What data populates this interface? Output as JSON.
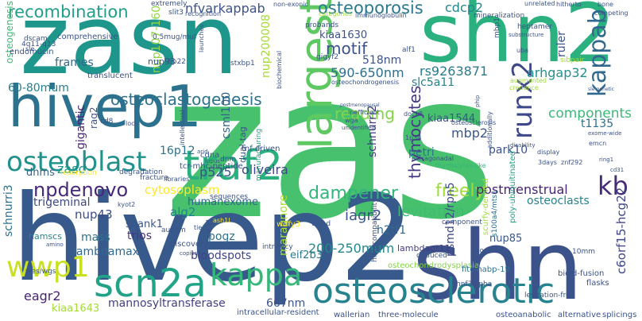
{
  "words": [
    {
      "text": "zas",
      "color": "#48c16e"
    },
    {
      "text": "hivep2",
      "color": "#38598c"
    },
    {
      "text": "zasn",
      "color": "#1f968b"
    },
    {
      "text": "shn2",
      "color": "#2bb07f"
    },
    {
      "text": "shn",
      "color": "#3b528b"
    },
    {
      "text": "hivep1",
      "color": "#2c728e"
    },
    {
      "text": "largest",
      "color": "#5ec962"
    },
    {
      "text": "traf2",
      "color": "#2ab07f"
    },
    {
      "text": "osteosclerotic",
      "color": "#26828e"
    },
    {
      "text": "scn2a",
      "color": "#20a386"
    },
    {
      "text": "kappab",
      "color": "#31688e"
    },
    {
      "text": "osteoblast",
      "color": "#21918c"
    },
    {
      "text": "wwp1",
      "color": "#c8e020"
    },
    {
      "text": "kappa",
      "color": "#35b779"
    },
    {
      "text": "runx2",
      "color": "#3e4989"
    },
    {
      "text": "recombination",
      "color": "#1f9e89"
    },
    {
      "text": "osteoporosis",
      "color": "#2a788e"
    },
    {
      "text": "thymocytes",
      "color": "#443983"
    },
    {
      "text": "dampener",
      "color": "#31b57b"
    },
    {
      "text": "osteoclastogenesis",
      "color": "#2c728e"
    },
    {
      "text": "npdenovo",
      "color": "#482878"
    },
    {
      "text": "motif",
      "color": "#3b528b"
    },
    {
      "text": "reading",
      "color": "#84d44b"
    },
    {
      "text": "freely",
      "color": "#a0da39"
    },
    {
      "text": "kb",
      "color": "#472c7a"
    },
    {
      "text": "c6orf15-hcg22",
      "color": "#3f4788"
    },
    {
      "text": "cdcp2",
      "color": "#24868e"
    },
    {
      "text": "nfvarkappab",
      "color": "#3b528b"
    },
    {
      "text": "590-650nm",
      "color": "#2d708e"
    },
    {
      "text": "rs9263871",
      "color": "#297b8e"
    },
    {
      "text": "arhgap32",
      "color": "#21918c"
    },
    {
      "text": "mbp2",
      "color": "#38588c"
    },
    {
      "text": "schnurri2",
      "color": "#443983"
    },
    {
      "text": "components",
      "color": "#3aba76"
    },
    {
      "text": "osteoclasts",
      "color": "#26828e"
    },
    {
      "text": "postmenstrual",
      "color": "#482374"
    },
    {
      "text": "levitation",
      "color": "#3dbc74"
    },
    {
      "text": "iagr2",
      "color": "#3b528b"
    },
    {
      "text": "200-250mum",
      "color": "#24868e"
    },
    {
      "text": "cytosoplasm",
      "color": "#fde725"
    },
    {
      "text": "oliveira",
      "color": "#3f4788"
    },
    {
      "text": "humanexome",
      "color": "#33638d"
    },
    {
      "text": "lambdamax",
      "color": "#31688e"
    },
    {
      "text": "bloodspots",
      "color": "#414487"
    },
    {
      "text": "mannosyltransferase",
      "color": "#433e85"
    },
    {
      "text": "667nm",
      "color": "#3b528b"
    },
    {
      "text": "eagr2",
      "color": "#482475"
    },
    {
      "text": "kiaa1643",
      "color": "#a5db36"
    },
    {
      "text": "p525",
      "color": "#3b528b"
    },
    {
      "text": "zasc",
      "color": "#1f968b"
    },
    {
      "text": "dnms",
      "color": "#33638d"
    },
    {
      "text": "schnurri3",
      "color": "#2c728e"
    },
    {
      "text": "hamscs",
      "color": "#25858e"
    },
    {
      "text": "mass",
      "color": "#2c728e"
    },
    {
      "text": "nup43",
      "color": "#3d4d8a"
    },
    {
      "text": "shank1",
      "color": "#39568c"
    },
    {
      "text": "trios",
      "color": "#46327e"
    },
    {
      "text": "alg2",
      "color": "#25838e"
    },
    {
      "text": "pogz",
      "color": "#2c728e"
    },
    {
      "text": "maragnore",
      "color": "#a8db34"
    },
    {
      "text": "eif2b3",
      "color": "#2a788e"
    },
    {
      "text": "h2tf1",
      "color": "#31688e"
    },
    {
      "text": "nup85",
      "color": "#39568c"
    },
    {
      "text": "psmd12/rpn5",
      "color": "#3e4989"
    },
    {
      "text": "lambdagt11",
      "color": "#433e85"
    },
    {
      "text": "petri",
      "color": "#2c728e"
    },
    {
      "text": "park10",
      "color": "#3b528b"
    },
    {
      "text": "t1135",
      "color": "#2d708e"
    },
    {
      "text": "ruler",
      "color": "#3b528b"
    },
    {
      "text": "kiaa1544",
      "color": "#3b528b"
    },
    {
      "text": "slc5a11",
      "color": "#26828e"
    },
    {
      "text": "518nm",
      "color": "#3b528b"
    },
    {
      "text": "kiaa1630",
      "color": "#3b528b"
    },
    {
      "text": "frames",
      "color": "#31688e"
    },
    {
      "text": "60-80mum",
      "color": "#287d8e"
    },
    {
      "text": "csml100",
      "color": "#33638d"
    },
    {
      "text": "16p12",
      "color": "#2d708e"
    },
    {
      "text": "nup107-160",
      "color": "#90d743"
    },
    {
      "text": "nup200008",
      "color": "#a5db36"
    },
    {
      "text": "comprehensive",
      "color": "#3b528b"
    },
    {
      "text": "nup93",
      "color": "#3b528b"
    },
    {
      "text": "thymocytes-like",
      "color": "#35b779"
    },
    {
      "text": "gigantic",
      "color": "#482475"
    },
    {
      "text": "rag2",
      "color": "#3b528b"
    },
    {
      "text": "trigeminal",
      "color": "#3e4989"
    },
    {
      "text": "osteogenesis",
      "color": "#3dbc74"
    },
    {
      "text": "cdna",
      "color": "#38598c"
    },
    {
      "text": "dnm",
      "color": "#3b528b"
    },
    {
      "text": "manufacturing",
      "color": "#1fa088"
    },
    {
      "text": "dual-tag",
      "color": "#3b528b"
    },
    {
      "text": "tnf-driven",
      "color": "#3b528b"
    },
    {
      "text": "tcr-mhc-peptide",
      "color": "#3b528b"
    },
    {
      "text": "discovery",
      "color": "#3b528b"
    },
    {
      "text": "intricacy",
      "color": "#3b528b"
    },
    {
      "text": "sequences",
      "color": "#3b528b"
    },
    {
      "text": "osteochondrodysplasia",
      "color": "#84d44b"
    },
    {
      "text": "fitc-habp-19",
      "color": "#2c728e"
    },
    {
      "text": "intracellular-resident",
      "color": "#3b528b"
    },
    {
      "text": "wallerian",
      "color": "#3b528b"
    },
    {
      "text": "three-molecule",
      "color": "#3b528b"
    },
    {
      "text": "hnf3alpha",
      "color": "#3b528b"
    },
    {
      "text": "scurfy-derived",
      "color": "#a0da39"
    },
    {
      "text": "s100a4/mts1",
      "color": "#2c728e"
    },
    {
      "text": "poly-ubiquitinated",
      "color": "#1f9e89"
    },
    {
      "text": "bioid-fusion",
      "color": "#3b528b"
    },
    {
      "text": "flasks",
      "color": "#3b528b"
    },
    {
      "text": "levitation-free",
      "color": "#3b528b"
    },
    {
      "text": "osteoanabolic",
      "color": "#3b528b"
    },
    {
      "text": "alternative",
      "color": "#3b528b"
    },
    {
      "text": "splicings",
      "color": "#3b528b"
    },
    {
      "text": "10mm",
      "color": "#3b528b"
    },
    {
      "text": "clones",
      "color": "#3b528b"
    },
    {
      "text": "deduced",
      "color": "#3b528b"
    },
    {
      "text": "component",
      "color": "#3b528b"
    },
    {
      "text": "histocompatibility",
      "color": "#3b528b"
    },
    {
      "text": "urp-d",
      "color": "#3b528b"
    },
    {
      "text": "wdfy3",
      "color": "#fde725"
    },
    {
      "text": "autism",
      "color": "#3b528b"
    },
    {
      "text": "ash1l",
      "color": "#fde725"
    },
    {
      "text": "kyot2",
      "color": "#3b528b"
    },
    {
      "text": "tier",
      "color": "#3b528b"
    },
    {
      "text": "amino",
      "color": "#3b528b"
    },
    {
      "text": "wes/wgs",
      "color": "#3b528b"
    },
    {
      "text": "copies",
      "color": "#3b528b"
    },
    {
      "text": "sntb1",
      "color": "#3b528b"
    },
    {
      "text": "libraries",
      "color": "#3b528b"
    },
    {
      "text": "fracture",
      "color": "#3b528b"
    },
    {
      "text": "resorption",
      "color": "#fde725"
    },
    {
      "text": "degradation",
      "color": "#3b528b"
    },
    {
      "text": "translucent",
      "color": "#3b528b"
    },
    {
      "text": "endomucin",
      "color": "#3b528b"
    },
    {
      "text": "dscam",
      "color": "#3b528b"
    },
    {
      "text": "sle",
      "color": "#3b528b"
    },
    {
      "text": "4q11-q13",
      "color": "#3b528b"
    },
    {
      "text": "extremely",
      "color": "#3b528b"
    },
    {
      "text": "slit3",
      "color": "#3b528b"
    },
    {
      "text": "recognition",
      "color": "#3b528b"
    },
    {
      "text": "non-exonic",
      "color": "#3b528b"
    },
    {
      "text": "immunoglobulin",
      "color": "#3b528b"
    },
    {
      "text": "categories",
      "color": "#a0da39"
    },
    {
      "text": "probands",
      "color": "#3b528b"
    },
    {
      "text": "0.5mug/mul",
      "color": "#3b528b"
    },
    {
      "text": "6p22",
      "color": "#3b528b"
    },
    {
      "text": "launches",
      "color": "#3b528b"
    },
    {
      "text": "stxbp1",
      "color": "#3b528b"
    },
    {
      "text": "alf1",
      "color": "#3b528b"
    },
    {
      "text": "gigyf2",
      "color": "#3b528b"
    },
    {
      "text": "biochemical",
      "color": "#3b528b"
    },
    {
      "text": "osteochondrogenesis",
      "color": "#3b528b"
    },
    {
      "text": "mineralization",
      "color": "#3b528b"
    },
    {
      "text": "heptamer",
      "color": "#3b528b"
    },
    {
      "text": "substructure",
      "color": "#3b528b"
    },
    {
      "text": "unrelated",
      "color": "#3b528b"
    },
    {
      "text": "hitherto",
      "color": "#3b528b"
    },
    {
      "text": "bone",
      "color": "#3b528b"
    },
    {
      "text": "competing",
      "color": "#3b528b"
    },
    {
      "text": "sibpair",
      "color": "#a0da39"
    },
    {
      "text": "augmented",
      "color": "#a0da39"
    },
    {
      "text": "credence",
      "color": "#a0da39"
    },
    {
      "text": "cd8",
      "color": "#3b528b"
    },
    {
      "text": "1p34",
      "color": "#3b528b"
    },
    {
      "text": "dock8",
      "color": "#3b528b"
    },
    {
      "text": "wga",
      "color": "#3b528b"
    },
    {
      "text": "inefficient",
      "color": "#3b528b"
    },
    {
      "text": "unidentified",
      "color": "#3b528b"
    },
    {
      "text": "extragonadal",
      "color": "#3b528b"
    },
    {
      "text": "osteosclerosis",
      "color": "#3b528b"
    },
    {
      "text": "additionally",
      "color": "#3b528b"
    },
    {
      "text": "disability",
      "color": "#3b528b"
    },
    {
      "text": "3days",
      "color": "#3b528b"
    },
    {
      "text": "display",
      "color": "#3b528b"
    },
    {
      "text": "znf292",
      "color": "#3b528b"
    },
    {
      "text": "emcn",
      "color": "#3b528b"
    },
    {
      "text": "exome-wide",
      "color": "#3b528b"
    },
    {
      "text": "ring1",
      "color": "#3b528b"
    },
    {
      "text": "cd31",
      "color": "#3b528b"
    },
    {
      "text": "mbp1",
      "color": "#3b528b"
    },
    {
      "text": "uba",
      "color": "#3b528b"
    },
    {
      "text": "postmenopausal",
      "color": "#3b528b"
    },
    {
      "text": "phip",
      "color": "#3b528b"
    },
    {
      "text": "lupus",
      "color": "#3b528b"
    },
    {
      "text": "arid",
      "color": "#3b528b"
    },
    {
      "text": "loci",
      "color": "#3b528b"
    },
    {
      "text": "intellectual",
      "color": "#3b528b"
    },
    {
      "text": "sle-genetic",
      "color": "#3b528b"
    }
  ]
}
